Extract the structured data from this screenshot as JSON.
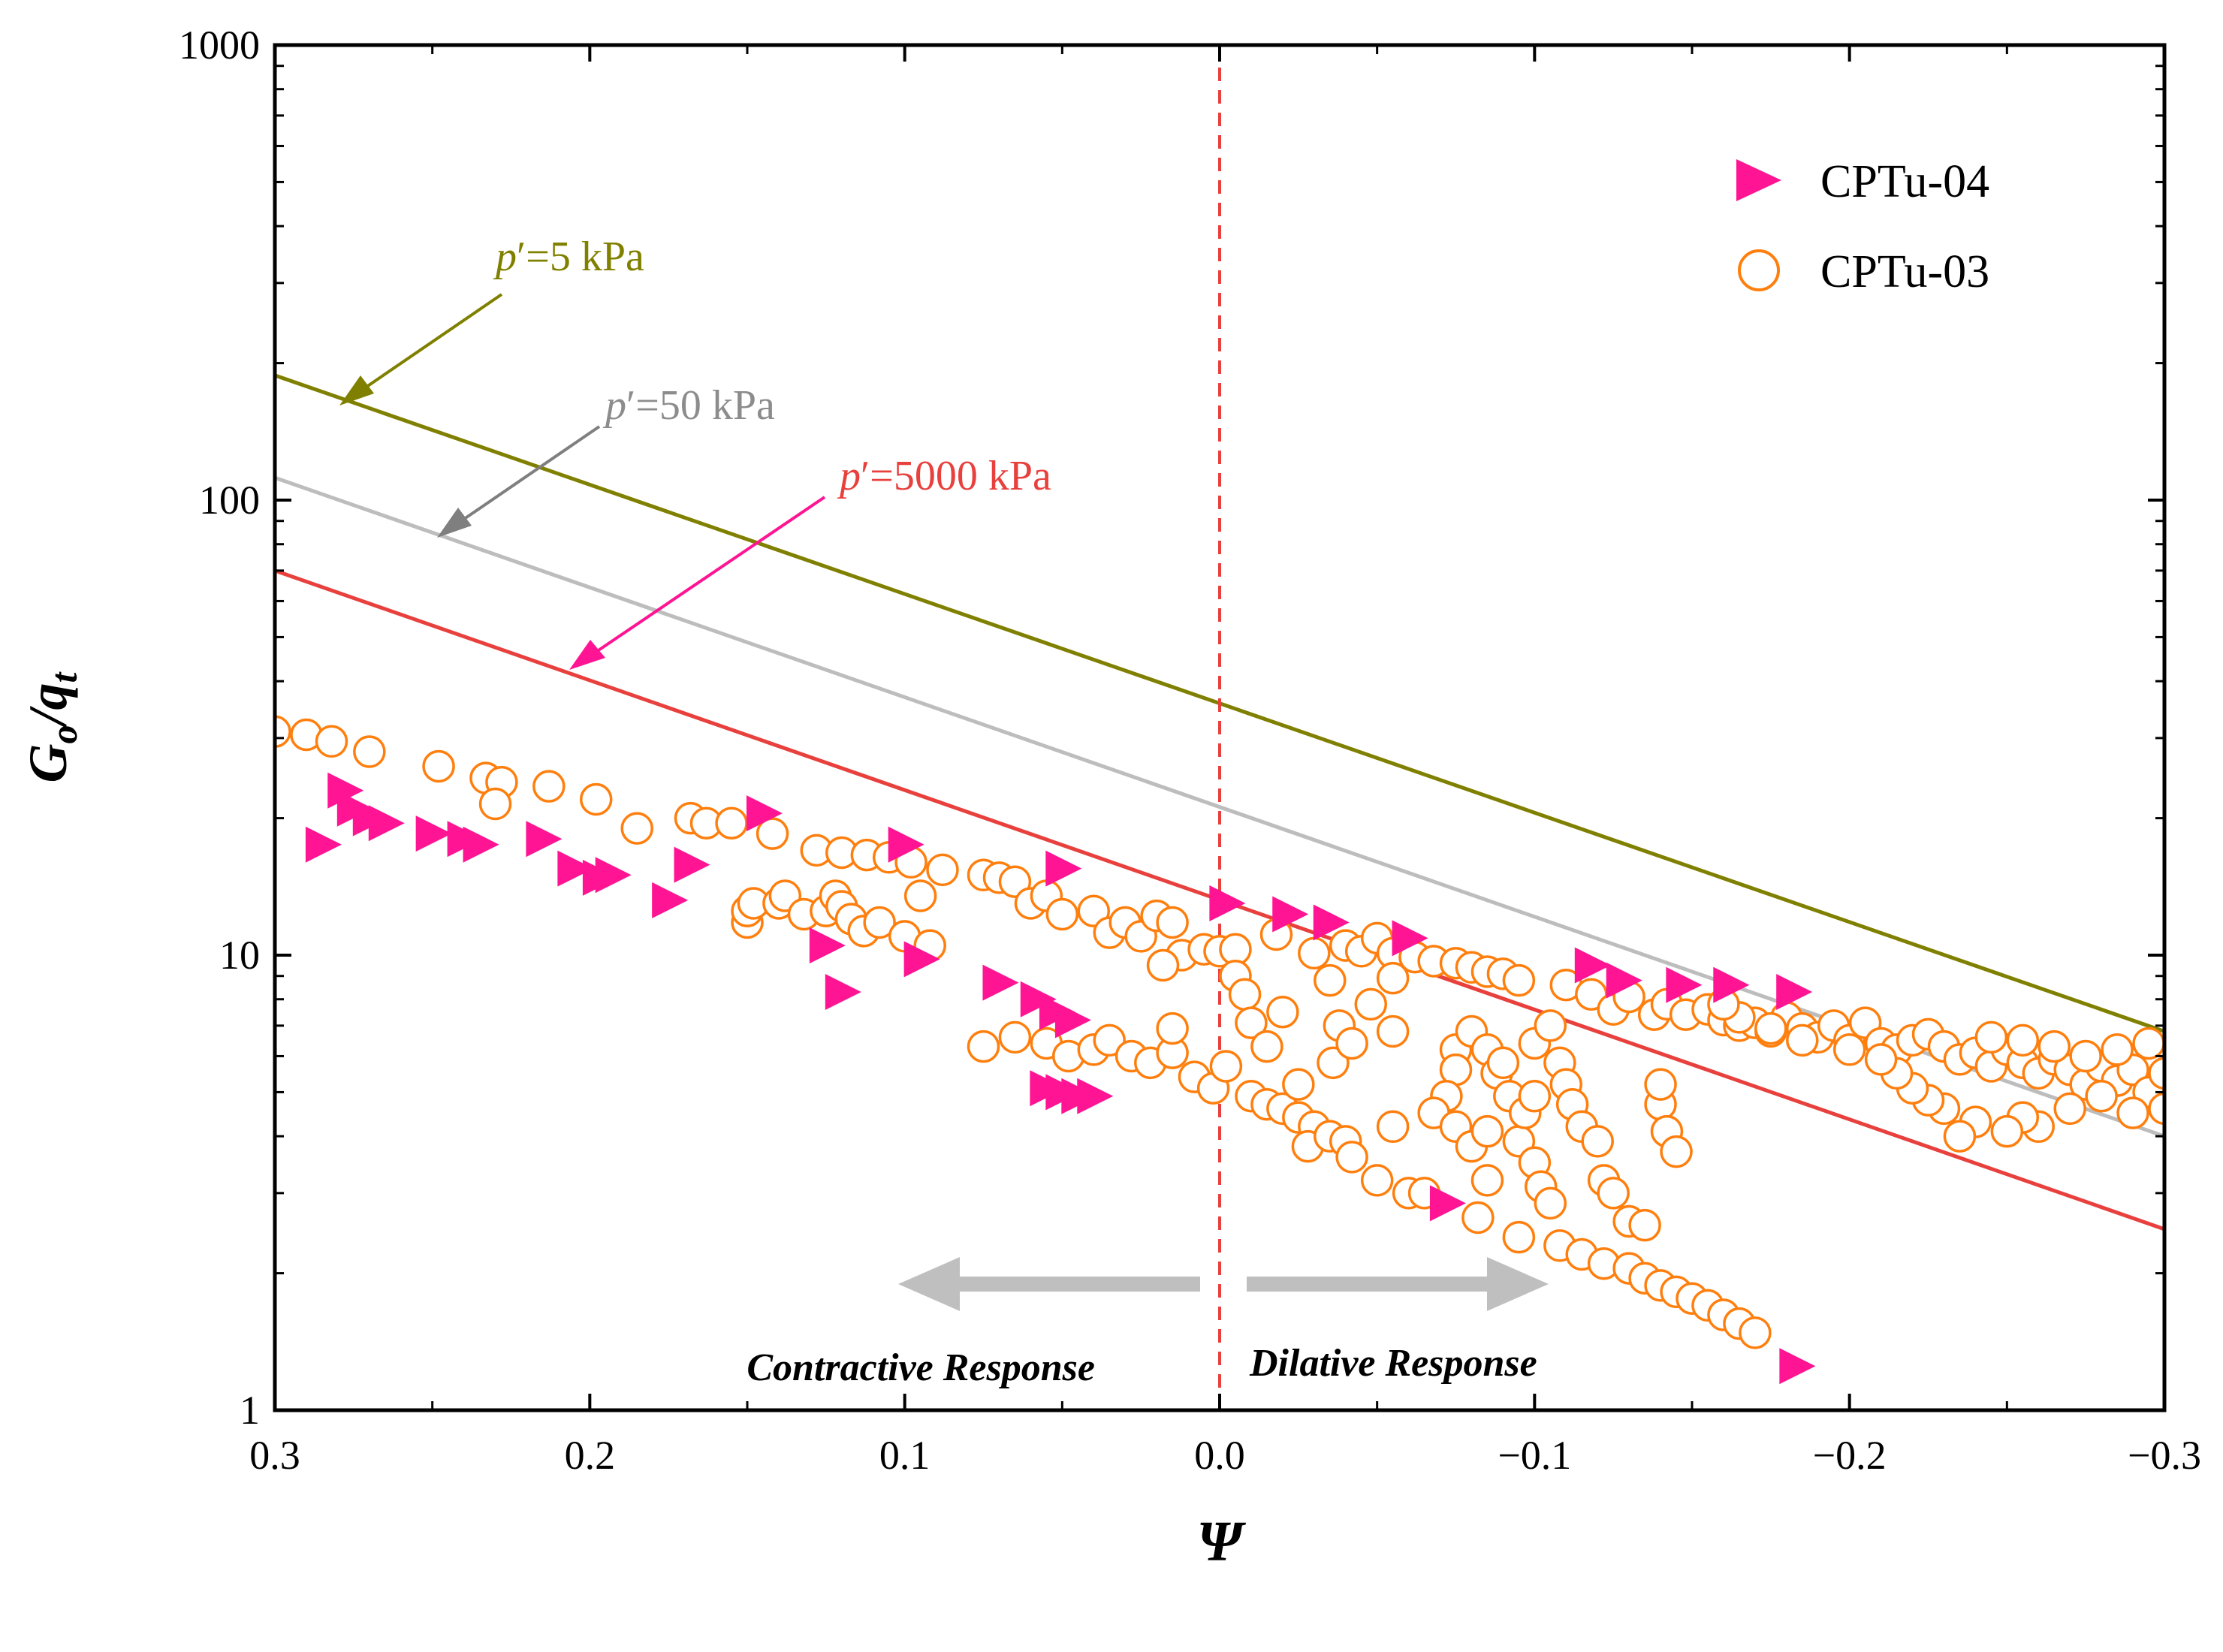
{
  "chart_data": {
    "type": "scatter",
    "title": "",
    "xlabel": "Ψ",
    "ylabel_main": "G",
    "ylabel_sub1": "o",
    "ylabel_mid": "/q",
    "ylabel_sub2": "t",
    "xlim": [
      0.3,
      -0.3
    ],
    "ylim": [
      1,
      1000
    ],
    "yscale": "log",
    "x_ticks": [
      {
        "value": 0.3,
        "label": "0.3"
      },
      {
        "value": 0.2,
        "label": "0.2"
      },
      {
        "value": 0.1,
        "label": "0.1"
      },
      {
        "value": 0.0,
        "label": "0.0"
      },
      {
        "value": -0.1,
        "label": "−0.1"
      },
      {
        "value": -0.2,
        "label": "−0.2"
      },
      {
        "value": -0.3,
        "label": "−0.3"
      }
    ],
    "y_ticks": [
      {
        "value": 1,
        "label": "1"
      },
      {
        "value": 10,
        "label": "10"
      },
      {
        "value": 100,
        "label": "100"
      },
      {
        "value": 1000,
        "label": "1000"
      }
    ],
    "legend_position": "top-right",
    "reference_lines": [
      {
        "name": "p′=5 kPa",
        "label_prefix": "p",
        "label_rest": "′=5 kPa",
        "color": "#808000",
        "y_at_0.3": 188,
        "y_at_-0.3": 6.8
      },
      {
        "name": "p′=50 kPa",
        "label_prefix": "p",
        "label_rest": "′=50 kPa",
        "color": "#bdbdbd",
        "y_at_0.3": 112,
        "y_at_-0.3": 4.0
      },
      {
        "name": "p′=5000 kPa",
        "label_prefix": "p",
        "label_rest": "′=5000 kPa",
        "color": "#e8403d",
        "y_at_0.3": 70,
        "y_at_-0.3": 2.5
      }
    ],
    "vertical_line": {
      "x": 0.0,
      "color": "#e8403d",
      "style": "dashed"
    },
    "region_labels": {
      "contractive": "Contractive Response",
      "dilative": "Dilative Response"
    },
    "series": [
      {
        "name": "CPTu-04",
        "marker": "triangle-right",
        "color": "#ff1493",
        "points": [
          [
            0.285,
            17.5
          ],
          [
            0.278,
            23
          ],
          [
            0.275,
            21
          ],
          [
            0.27,
            20
          ],
          [
            0.265,
            19.5
          ],
          [
            0.25,
            18.5
          ],
          [
            0.24,
            18
          ],
          [
            0.235,
            17.5
          ],
          [
            0.215,
            18
          ],
          [
            0.205,
            15.5
          ],
          [
            0.197,
            14.8
          ],
          [
            0.193,
            15
          ],
          [
            0.175,
            13.2
          ],
          [
            0.168,
            15.8
          ],
          [
            0.145,
            20.5
          ],
          [
            0.125,
            10.5
          ],
          [
            0.12,
            8.3
          ],
          [
            0.1,
            17.5
          ],
          [
            0.095,
            9.8
          ],
          [
            0.07,
            8.7
          ],
          [
            0.058,
            8.0
          ],
          [
            0.052,
            7.5
          ],
          [
            0.05,
            15.5
          ],
          [
            0.055,
            5.1
          ],
          [
            0.05,
            5.0
          ],
          [
            0.045,
            4.9
          ],
          [
            0.04,
            4.9
          ],
          [
            0.047,
            7.2
          ],
          [
            -0.002,
            13.0
          ],
          [
            -0.022,
            12.3
          ],
          [
            -0.035,
            11.8
          ],
          [
            -0.06,
            10.9
          ],
          [
            -0.072,
            2.85
          ],
          [
            -0.118,
            9.5
          ],
          [
            -0.128,
            8.8
          ],
          [
            -0.147,
            8.6
          ],
          [
            -0.162,
            8.6
          ],
          [
            -0.182,
            8.3
          ],
          [
            -0.183,
            1.25
          ]
        ]
      },
      {
        "name": "CPTu-03",
        "marker": "circle-open",
        "color": "#ff7f0e",
        "points": [
          [
            0.3,
            31
          ],
          [
            0.29,
            30.5
          ],
          [
            0.282,
            29.5
          ],
          [
            0.27,
            28
          ],
          [
            0.248,
            26
          ],
          [
            0.233,
            24.5
          ],
          [
            0.228,
            24
          ],
          [
            0.23,
            21.5
          ],
          [
            0.213,
            23.5
          ],
          [
            0.198,
            22
          ],
          [
            0.185,
            19
          ],
          [
            0.168,
            20
          ],
          [
            0.163,
            19.5
          ],
          [
            0.155,
            19.5
          ],
          [
            0.142,
            18.5
          ],
          [
            0.15,
            11.8
          ],
          [
            0.15,
            12.5
          ],
          [
            0.148,
            13
          ],
          [
            0.14,
            13
          ],
          [
            0.138,
            13.5
          ],
          [
            0.132,
            12.3
          ],
          [
            0.125,
            12.5
          ],
          [
            0.122,
            13.5
          ],
          [
            0.12,
            12.8
          ],
          [
            0.117,
            12
          ],
          [
            0.113,
            11.3
          ],
          [
            0.108,
            11.8
          ],
          [
            0.1,
            11
          ],
          [
            0.095,
            13.5
          ],
          [
            0.092,
            10.5
          ],
          [
            0.128,
            17
          ],
          [
            0.12,
            16.8
          ],
          [
            0.112,
            16.6
          ],
          [
            0.105,
            16.4
          ],
          [
            0.098,
            16
          ],
          [
            0.088,
            15.4
          ],
          [
            0.075,
            15
          ],
          [
            0.07,
            14.8
          ],
          [
            0.065,
            14.5
          ],
          [
            0.06,
            13
          ],
          [
            0.055,
            13.5
          ],
          [
            0.05,
            12.3
          ],
          [
            0.04,
            12.5
          ],
          [
            0.035,
            11.2
          ],
          [
            0.03,
            11.8
          ],
          [
            0.025,
            11
          ],
          [
            0.02,
            12.2
          ],
          [
            0.015,
            11.8
          ],
          [
            0.012,
            10
          ],
          [
            0.018,
            9.5
          ],
          [
            0.075,
            6.3
          ],
          [
            0.065,
            6.6
          ],
          [
            0.055,
            6.4
          ],
          [
            0.048,
            6.0
          ],
          [
            0.04,
            6.2
          ],
          [
            0.035,
            6.5
          ],
          [
            0.028,
            6.0
          ],
          [
            0.022,
            5.8
          ],
          [
            0.015,
            6.1
          ],
          [
            0.015,
            6.9
          ],
          [
            0.008,
            5.4
          ],
          [
            0.002,
            5.1
          ],
          [
            -0.002,
            5.7
          ],
          [
            0.005,
            10.3
          ],
          [
            0.0,
            10.2
          ],
          [
            -0.005,
            10.3
          ],
          [
            -0.005,
            9.0
          ],
          [
            -0.008,
            8.2
          ],
          [
            -0.01,
            7.1
          ],
          [
            -0.015,
            6.3
          ],
          [
            -0.02,
            7.5
          ],
          [
            -0.01,
            4.9
          ],
          [
            -0.015,
            4.7
          ],
          [
            -0.02,
            4.6
          ],
          [
            -0.025,
            5.2
          ],
          [
            -0.025,
            4.4
          ],
          [
            -0.03,
            4.2
          ],
          [
            -0.028,
            3.8
          ],
          [
            -0.035,
            4.0
          ],
          [
            -0.04,
            3.9
          ],
          [
            -0.042,
            3.6
          ],
          [
            -0.055,
            4.2
          ],
          [
            -0.05,
            3.2
          ],
          [
            -0.06,
            3.0
          ],
          [
            -0.065,
            3.0
          ],
          [
            -0.018,
            11.1
          ],
          [
            -0.03,
            10.1
          ],
          [
            -0.04,
            10.5
          ],
          [
            -0.045,
            10.2
          ],
          [
            -0.05,
            10.9
          ],
          [
            -0.055,
            10.1
          ],
          [
            -0.035,
            8.8
          ],
          [
            -0.038,
            7.0
          ],
          [
            -0.036,
            5.8
          ],
          [
            -0.042,
            6.4
          ],
          [
            -0.048,
            7.8
          ],
          [
            -0.055,
            8.9
          ],
          [
            -0.055,
            6.8
          ],
          [
            -0.062,
            9.9
          ],
          [
            -0.068,
            9.7
          ],
          [
            -0.075,
            9.6
          ],
          [
            -0.08,
            9.4
          ],
          [
            -0.085,
            9.2
          ],
          [
            -0.09,
            9.1
          ],
          [
            -0.095,
            8.8
          ],
          [
            -0.075,
            6.2
          ],
          [
            -0.075,
            5.6
          ],
          [
            -0.072,
            4.9
          ],
          [
            -0.068,
            4.5
          ],
          [
            -0.075,
            4.2
          ],
          [
            -0.08,
            3.8
          ],
          [
            -0.085,
            4.1
          ],
          [
            -0.085,
            3.2
          ],
          [
            -0.082,
            2.65
          ],
          [
            -0.08,
            6.8
          ],
          [
            -0.085,
            6.2
          ],
          [
            -0.088,
            5.5
          ],
          [
            -0.09,
            5.8
          ],
          [
            -0.092,
            4.9
          ],
          [
            -0.095,
            3.9
          ],
          [
            -0.097,
            4.5
          ],
          [
            -0.1,
            4.9
          ],
          [
            -0.1,
            3.5
          ],
          [
            -0.102,
            3.1
          ],
          [
            -0.105,
            2.85
          ],
          [
            -0.1,
            6.4
          ],
          [
            -0.105,
            7.0
          ],
          [
            -0.108,
            5.8
          ],
          [
            -0.11,
            5.2
          ],
          [
            -0.112,
            4.7
          ],
          [
            -0.115,
            4.2
          ],
          [
            -0.12,
            3.9
          ],
          [
            -0.122,
            3.2
          ],
          [
            -0.125,
            3.0
          ],
          [
            -0.13,
            2.6
          ],
          [
            -0.135,
            2.55
          ],
          [
            -0.14,
            4.7
          ],
          [
            -0.14,
            5.2
          ],
          [
            -0.142,
            4.1
          ],
          [
            -0.145,
            3.7
          ],
          [
            -0.095,
            2.4
          ],
          [
            -0.108,
            2.3
          ],
          [
            -0.115,
            2.2
          ],
          [
            -0.122,
            2.1
          ],
          [
            -0.13,
            2.05
          ],
          [
            -0.135,
            1.95
          ],
          [
            -0.14,
            1.88
          ],
          [
            -0.145,
            1.82
          ],
          [
            -0.15,
            1.76
          ],
          [
            -0.155,
            1.7
          ],
          [
            -0.16,
            1.62
          ],
          [
            -0.165,
            1.55
          ],
          [
            -0.17,
            1.48
          ],
          [
            -0.11,
            8.6
          ],
          [
            -0.118,
            8.2
          ],
          [
            -0.125,
            7.6
          ],
          [
            -0.13,
            8.1
          ],
          [
            -0.138,
            7.4
          ],
          [
            -0.142,
            7.8
          ],
          [
            -0.148,
            7.4
          ],
          [
            -0.155,
            7.6
          ],
          [
            -0.16,
            7.2
          ],
          [
            -0.165,
            7.0
          ],
          [
            -0.17,
            7.1
          ],
          [
            -0.175,
            6.8
          ],
          [
            -0.18,
            7.3
          ],
          [
            -0.185,
            6.9
          ],
          [
            -0.19,
            6.6
          ],
          [
            -0.195,
            7.0
          ],
          [
            -0.2,
            6.5
          ],
          [
            -0.205,
            7.1
          ],
          [
            -0.21,
            6.4
          ],
          [
            -0.215,
            6.2
          ],
          [
            -0.22,
            6.5
          ],
          [
            -0.225,
            6.7
          ],
          [
            -0.23,
            6.3
          ],
          [
            -0.235,
            5.9
          ],
          [
            -0.24,
            6.1
          ],
          [
            -0.245,
            5.7
          ],
          [
            -0.25,
            6.2
          ],
          [
            -0.255,
            5.8
          ],
          [
            -0.26,
            5.5
          ],
          [
            -0.265,
            5.9
          ],
          [
            -0.27,
            5.6
          ],
          [
            -0.275,
            5.2
          ],
          [
            -0.28,
            5.7
          ],
          [
            -0.285,
            5.3
          ],
          [
            -0.29,
            5.6
          ],
          [
            -0.295,
            5.0
          ],
          [
            -0.3,
            5.5
          ],
          [
            -0.3,
            4.6
          ],
          [
            -0.29,
            4.5
          ],
          [
            -0.28,
            4.9
          ],
          [
            -0.27,
            4.6
          ],
          [
            -0.26,
            4.2
          ],
          [
            -0.255,
            4.4
          ],
          [
            -0.25,
            4.1
          ],
          [
            -0.24,
            4.3
          ],
          [
            -0.235,
            4.0
          ],
          [
            -0.23,
            4.6
          ],
          [
            -0.225,
            4.8
          ],
          [
            -0.22,
            5.1
          ],
          [
            -0.215,
            5.5
          ],
          [
            -0.21,
            5.9
          ],
          [
            -0.2,
            6.2
          ],
          [
            -0.185,
            6.5
          ],
          [
            -0.175,
            6.9
          ],
          [
            -0.165,
            7.3
          ],
          [
            -0.16,
            7.8
          ],
          [
            -0.245,
            6.6
          ],
          [
            -0.255,
            6.5
          ],
          [
            -0.265,
            6.3
          ],
          [
            -0.275,
            6.0
          ],
          [
            -0.285,
            6.2
          ],
          [
            -0.295,
            6.4
          ]
        ]
      }
    ]
  }
}
